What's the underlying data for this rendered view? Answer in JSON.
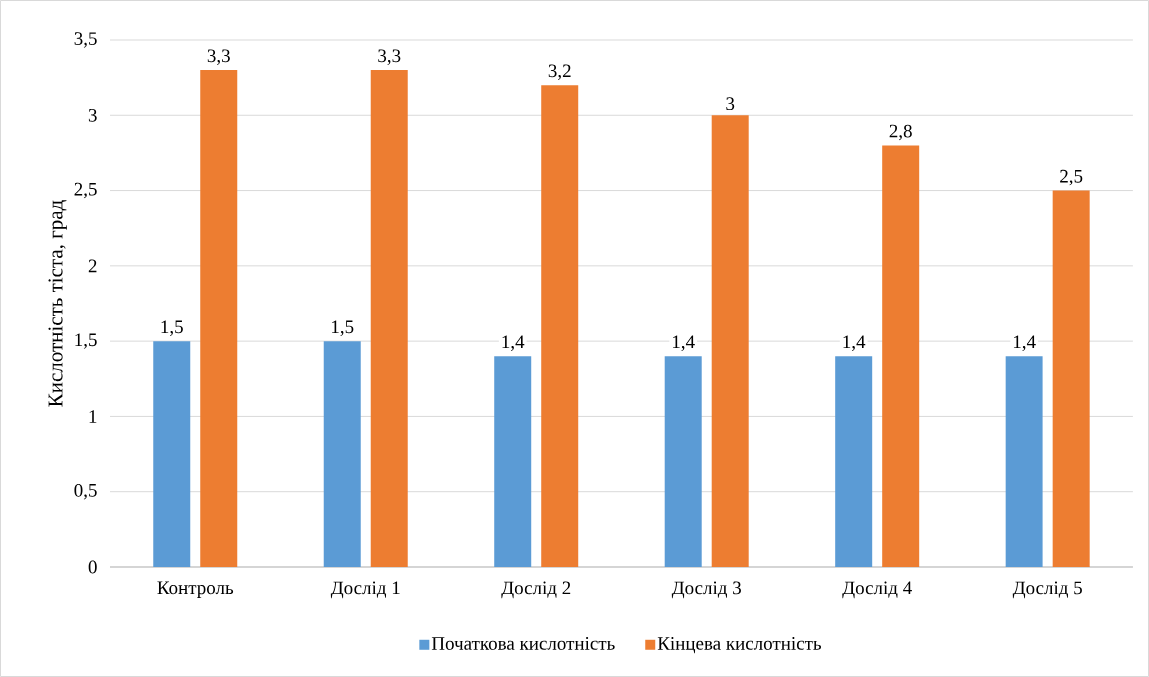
{
  "chart_data": {
    "type": "bar",
    "ylabel": "Кислотність тіста, град",
    "categories": [
      "Контроль",
      "Дослід 1",
      "Дослід 2",
      "Дослід 3",
      "Дослід 4",
      "Дослід 5"
    ],
    "series": [
      {
        "name": "Початкова кислотність",
        "color": "#5b9bd5",
        "values": [
          1.5,
          1.5,
          1.4,
          1.4,
          1.4,
          1.4
        ],
        "value_labels": [
          "1,5",
          "1,5",
          "1,4",
          "1,4",
          "1,4",
          "1,4"
        ]
      },
      {
        "name": "Кінцева кислотність",
        "color": "#ed7d31",
        "values": [
          3.3,
          3.3,
          3.2,
          3.0,
          2.8,
          2.5
        ],
        "value_labels": [
          "3,3",
          "3,3",
          "3,2",
          "3",
          "2,8",
          "2,5"
        ]
      }
    ],
    "ylim": [
      0,
      3.5
    ],
    "yticks": [
      0,
      {
        "value": 0.5,
        "label": "0,5"
      },
      1,
      {
        "value": 1.5,
        "label": "1,5"
      },
      2,
      {
        "value": 2.5,
        "label": "2,5"
      },
      3,
      {
        "value": 3.5,
        "label": "3,5"
      }
    ],
    "grid": "y",
    "legend": "bottom"
  }
}
